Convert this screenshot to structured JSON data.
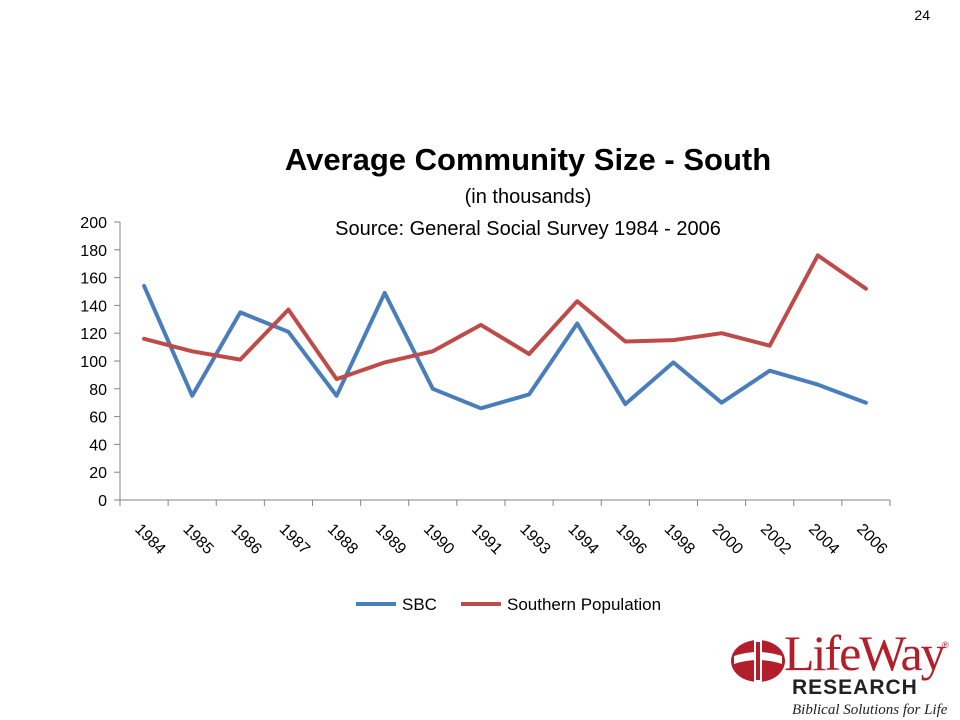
{
  "page": {
    "number": "24"
  },
  "chart_data": {
    "type": "line",
    "title": "Average Community Size - South",
    "subtitle": "(in thousands)",
    "source": "Source: General Social Survey 1984 - 2006",
    "categories": [
      "1984",
      "1985",
      "1986",
      "1987",
      "1988",
      "1989",
      "1990",
      "1991",
      "1993",
      "1994",
      "1996",
      "1998",
      "2000",
      "2002",
      "2004",
      "2006"
    ],
    "series": [
      {
        "name": "SBC",
        "color": "#4a7ebb",
        "values": [
          154,
          75,
          135,
          121,
          75,
          149,
          80,
          66,
          76,
          127,
          69,
          99,
          70,
          93,
          83,
          70
        ]
      },
      {
        "name": "Southern Population",
        "color": "#be4b48",
        "values": [
          116,
          107,
          101,
          137,
          87,
          99,
          107,
          126,
          105,
          143,
          114,
          115,
          120,
          111,
          176,
          152
        ]
      }
    ],
    "ylim": [
      0,
      200
    ],
    "yticks": [
      0,
      20,
      40,
      60,
      80,
      100,
      120,
      140,
      160,
      180,
      200
    ],
    "grid": false,
    "legend": "bottom"
  },
  "logo": {
    "name": "LifeWay",
    "registered": "®",
    "research": "RESEARCH",
    "tagline": "Biblical Solutions for Life",
    "color": "#b21e2a"
  }
}
